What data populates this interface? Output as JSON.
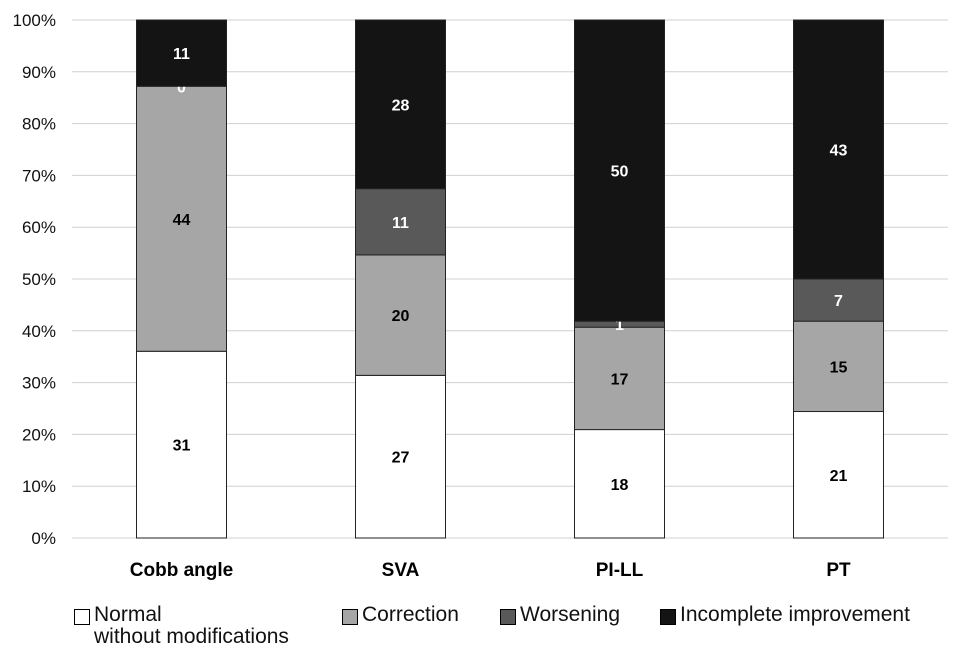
{
  "chart_data": {
    "type": "bar",
    "stacked": true,
    "normalized": true,
    "categories": [
      "Cobb angle",
      "SVA",
      "PI-LL",
      "PT"
    ],
    "series": [
      {
        "name": "Normal\nwithout modifications",
        "values": [
          31,
          27,
          18,
          21
        ],
        "color": "#ffffff"
      },
      {
        "name": "Correction",
        "values": [
          44,
          20,
          17,
          15
        ],
        "color": "#a6a6a6"
      },
      {
        "name": "Worsening",
        "values": [
          0,
          11,
          1,
          7
        ],
        "color": "#595959"
      },
      {
        "name": "Incomplete improvement",
        "values": [
          11,
          28,
          50,
          43
        ],
        "color": "#141414"
      }
    ],
    "yticks": [
      "0%",
      "10%",
      "20%",
      "30%",
      "40%",
      "50%",
      "60%",
      "70%",
      "80%",
      "90%",
      "100%"
    ],
    "ylim": [
      0,
      100
    ],
    "grid": true,
    "legend_position": "bottom",
    "xlabel": "",
    "ylabel": ""
  }
}
